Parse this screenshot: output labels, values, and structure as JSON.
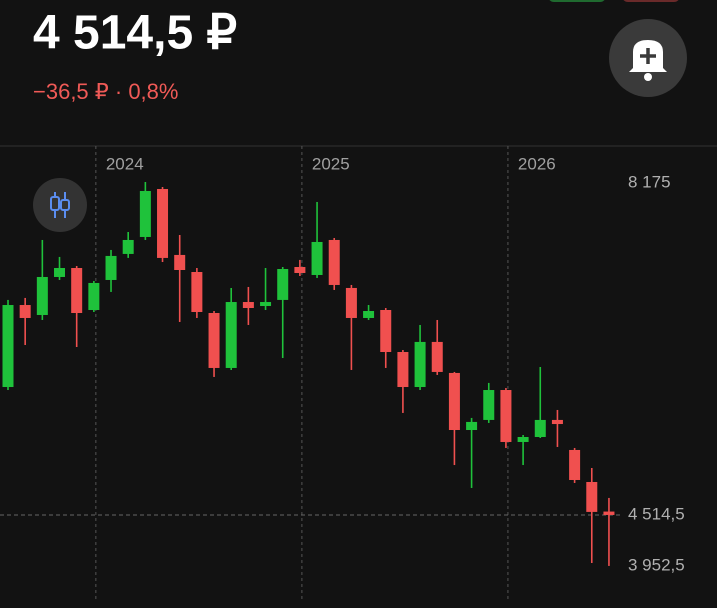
{
  "header": {
    "price": "4 514,5 ₽",
    "change": "−36,5 ₽ · 0,8%"
  },
  "chart_data": {
    "type": "candlestick",
    "categories": [
      null,
      null,
      null,
      null,
      null,
      "2024",
      null,
      null,
      null,
      null,
      null,
      null,
      null,
      null,
      null,
      null,
      null,
      "2025",
      null,
      null,
      null,
      null,
      null,
      null,
      null,
      null,
      null,
      null,
      null,
      "2026",
      null,
      null,
      null,
      null,
      null,
      null
    ],
    "open": [
      5925,
      6829,
      6719,
      7138,
      7237,
      6774,
      7105,
      7392,
      7579,
      8108,
      7381,
      7193,
      6741,
      6135,
      6862,
      6818,
      6885,
      7248,
      7160,
      7546,
      7017,
      6686,
      6774,
      6311,
      5925,
      6422,
      6080,
      5451,
      5562,
      5892,
      5319,
      5374,
      5562,
      5231,
      4878,
      4552
    ],
    "high": [
      6885,
      6907,
      7546,
      7359,
      7259,
      7094,
      7436,
      7634,
      8185,
      8130,
      7601,
      7237,
      6763,
      7017,
      7028,
      7237,
      7248,
      7326,
      7965,
      7568,
      7050,
      6829,
      6796,
      6333,
      6609,
      6664,
      6091,
      5584,
      5970,
      5914,
      5396,
      6146,
      5672,
      5253,
      5032,
      4702
    ],
    "low": [
      5892,
      6388,
      6664,
      7105,
      6366,
      6752,
      6973,
      7348,
      7546,
      7303,
      6642,
      6686,
      6036,
      6113,
      6609,
      6774,
      6245,
      7149,
      7127,
      6995,
      6113,
      6664,
      6135,
      5639,
      5892,
      6058,
      5065,
      4812,
      5529,
      5253,
      5065,
      5363,
      5264,
      4867,
      3985,
      3952.5
    ],
    "close": [
      6829,
      6686,
      7138,
      7237,
      6741,
      7072,
      7370,
      7546,
      8086,
      7348,
      7215,
      6752,
      6135,
      6862,
      6796,
      6862,
      7226,
      7182,
      7524,
      7050,
      6686,
      6763,
      6311,
      5925,
      6422,
      6091,
      5451,
      5540,
      5892,
      5319,
      5374,
      5562,
      5517,
      4900,
      4548,
      4514.5
    ],
    "up_color": "#1fc23b",
    "down_color": "#f0504f",
    "ylim": [
      3577,
      8582
    ],
    "yticks": [
      {
        "value": 8175,
        "label": "8 175"
      },
      {
        "value": 4514.5,
        "label": "4 514,5"
      },
      {
        "value": 3952.5,
        "label": "3 952,5"
      }
    ]
  }
}
